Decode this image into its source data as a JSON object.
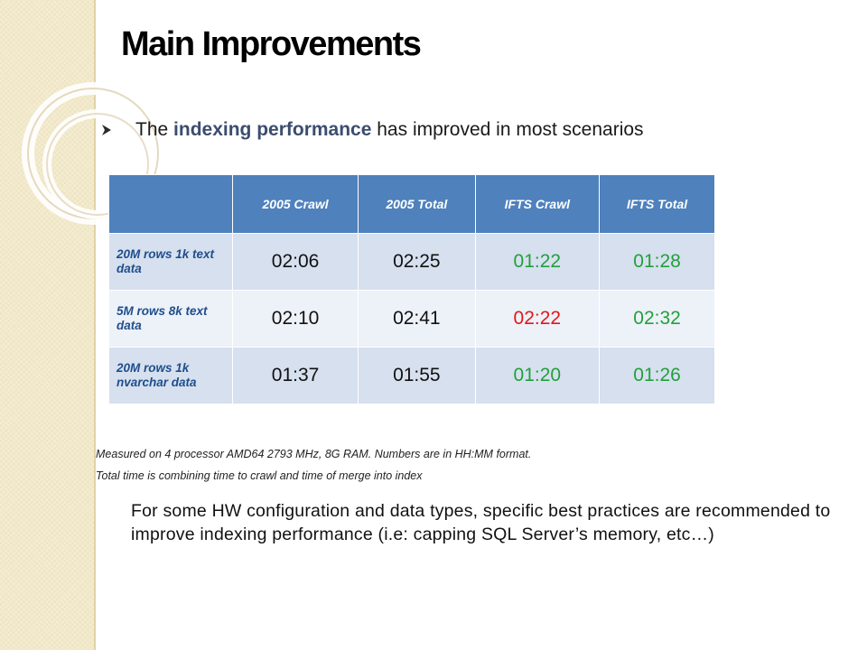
{
  "slide": {
    "title": "Main Improvements",
    "bullet": {
      "prefix": "The ",
      "highlight": "indexing performance",
      "suffix": " has improved in most scenarios"
    }
  },
  "table": {
    "headers": [
      "",
      "2005 Crawl",
      "2005 Total",
      "IFTS Crawl",
      "IFTS Total"
    ],
    "rows": [
      {
        "label": "20M rows 1k text data",
        "values": [
          "02:06",
          "02:25",
          "01:22",
          "01:28"
        ]
      },
      {
        "label": "5M rows 8k text data",
        "values": [
          "02:10",
          "02:41",
          "02:22",
          "02:32"
        ]
      },
      {
        "label": "20M rows 1k nvarchar data",
        "values": [
          "01:37",
          "01:55",
          "01:20",
          "01:26"
        ]
      }
    ]
  },
  "notes": {
    "line1": "Measured on 4 processor AMD64 2793 MHz, 8G RAM. Numbers are in HH:MM format.",
    "line2": "Total time is combining time to crawl and time of merge into index"
  },
  "paragraph": "For some HW configuration and data types, specific best practices are recommended to improve indexing performance (i.e: capping SQL Server’s memory, etc…)",
  "colors": {
    "header_bg": "#4f81bd",
    "row_odd": "#d6e0ee",
    "row_even": "#edf1f8",
    "improved": "#22a03c",
    "regressed": "#e01818",
    "highlight_text": "#3b4d6e"
  }
}
